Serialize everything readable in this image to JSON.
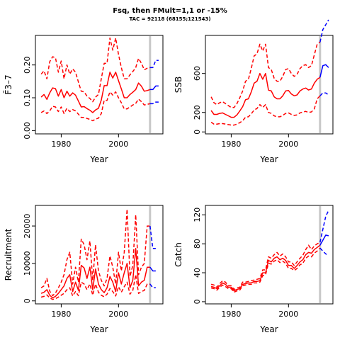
{
  "title": "Fsq, then FMult=1,1 or -15%",
  "subtitle": "TAC = 92118 (68155;121543)",
  "colors": {
    "history": "#ff0000",
    "projection": "#0000ff",
    "divider": "#c8c8c8",
    "axis": "#000000"
  },
  "chart_data": [
    {
      "type": "line",
      "id": "fbar",
      "xlabel": "Year",
      "ylabel": "F̄3–7",
      "xlim": [
        1971,
        2015.5
      ],
      "ylim": [
        -0.01,
        0.29
      ],
      "xticks": [
        1980,
        2000
      ],
      "yticks": [
        0.0,
        0.1,
        0.2
      ],
      "ytick_labels": [
        "0.00",
        "0.10",
        "0.20"
      ],
      "divider_x": 2011,
      "history_x": [
        1973,
        1974,
        1975,
        1976,
        1977,
        1978,
        1979,
        1980,
        1981,
        1982,
        1983,
        1984,
        1985,
        1986,
        1987,
        1988,
        1989,
        1990,
        1991,
        1992,
        1993,
        1994,
        1995,
        1996,
        1997,
        1998,
        1999,
        2000,
        2001,
        2002,
        2003,
        2004,
        2005,
        2006,
        2007,
        2008,
        2009,
        2010,
        2011
      ],
      "history_mid": [
        0.102,
        0.11,
        0.095,
        0.115,
        0.13,
        0.128,
        0.105,
        0.125,
        0.1,
        0.12,
        0.105,
        0.115,
        0.108,
        0.09,
        0.072,
        0.073,
        0.067,
        0.062,
        0.055,
        0.063,
        0.068,
        0.093,
        0.137,
        0.137,
        0.178,
        0.16,
        0.178,
        0.152,
        0.127,
        0.1,
        0.1,
        0.11,
        0.117,
        0.125,
        0.145,
        0.135,
        0.12,
        0.122,
        0.125
      ],
      "history_upper": [
        0.172,
        0.182,
        0.158,
        0.21,
        0.225,
        0.222,
        0.178,
        0.212,
        0.158,
        0.2,
        0.172,
        0.188,
        0.178,
        0.148,
        0.12,
        0.118,
        0.105,
        0.098,
        0.088,
        0.102,
        0.11,
        0.158,
        0.205,
        0.205,
        0.282,
        0.245,
        0.282,
        0.232,
        0.192,
        0.158,
        0.158,
        0.17,
        0.18,
        0.192,
        0.22,
        0.205,
        0.185,
        0.19,
        0.192
      ],
      "history_lower": [
        0.055,
        0.06,
        0.052,
        0.06,
        0.074,
        0.072,
        0.058,
        0.072,
        0.052,
        0.068,
        0.058,
        0.064,
        0.06,
        0.05,
        0.04,
        0.04,
        0.037,
        0.034,
        0.03,
        0.035,
        0.038,
        0.052,
        0.092,
        0.092,
        0.118,
        0.108,
        0.118,
        0.1,
        0.085,
        0.066,
        0.066,
        0.072,
        0.078,
        0.083,
        0.096,
        0.088,
        0.078,
        0.08,
        0.082
      ],
      "projection_x": [
        2011,
        2012,
        2013,
        2014
      ],
      "projection_mid": [
        0.125,
        0.125,
        0.136,
        0.136
      ],
      "projection_upper": [
        0.192,
        0.192,
        0.214,
        0.214
      ],
      "projection_lower": [
        0.082,
        0.082,
        0.087,
        0.087
      ]
    },
    {
      "type": "line",
      "id": "ssb",
      "xlabel": "Year",
      "ylabel": "SSB",
      "xlim": [
        1971,
        2015.5
      ],
      "ylim": [
        -20,
        990
      ],
      "xticks": [
        1980,
        2000
      ],
      "yticks": [
        0,
        200,
        600
      ],
      "ytick_labels": [
        "0",
        "200",
        "600"
      ],
      "divider_x": 2011,
      "history_x": [
        1973,
        1974,
        1975,
        1976,
        1977,
        1978,
        1979,
        1980,
        1981,
        1982,
        1983,
        1984,
        1985,
        1986,
        1987,
        1988,
        1989,
        1990,
        1991,
        1992,
        1993,
        1994,
        1995,
        1996,
        1997,
        1998,
        1999,
        2000,
        2001,
        2002,
        2003,
        2004,
        2005,
        2006,
        2007,
        2008,
        2009,
        2010,
        2011
      ],
      "history_mid": [
        220,
        180,
        180,
        190,
        195,
        180,
        165,
        150,
        150,
        175,
        215,
        260,
        330,
        340,
        410,
        500,
        520,
        600,
        540,
        600,
        430,
        420,
        360,
        340,
        340,
        370,
        420,
        425,
        390,
        370,
        380,
        420,
        440,
        450,
        430,
        440,
        500,
        540,
        560
      ],
      "history_upper": [
        360,
        300,
        280,
        300,
        310,
        290,
        270,
        250,
        250,
        290,
        350,
        420,
        520,
        540,
        650,
        780,
        800,
        900,
        830,
        900,
        660,
        640,
        550,
        520,
        520,
        570,
        640,
        650,
        600,
        570,
        590,
        650,
        680,
        690,
        660,
        680,
        790,
        900,
        920
      ],
      "history_lower": [
        100,
        80,
        80,
        85,
        85,
        80,
        75,
        70,
        70,
        80,
        95,
        115,
        150,
        155,
        185,
        225,
        240,
        280,
        250,
        280,
        200,
        190,
        165,
        155,
        155,
        170,
        190,
        195,
        180,
        170,
        175,
        195,
        205,
        210,
        200,
        205,
        235,
        340,
        370
      ],
      "projection_x": [
        2011,
        2012,
        2013,
        2014
      ],
      "projection_mid": [
        560,
        680,
        690,
        660
      ],
      "projection_upper": [
        920,
        1050,
        1100,
        1150
      ],
      "projection_lower": [
        370,
        400,
        400,
        380
      ]
    },
    {
      "type": "line",
      "id": "recruitment",
      "xlabel": "Year",
      "ylabel": "Recruitment",
      "xlim": [
        1971,
        2015.5
      ],
      "ylim": [
        -800,
        25500
      ],
      "xticks": [
        1980,
        2000
      ],
      "yticks": [
        0,
        10000,
        20000
      ],
      "ytick_labels": [
        "0",
        "10000",
        "20000"
      ],
      "divider_x": 2011,
      "history_x": [
        1973,
        1974,
        1975,
        1976,
        1977,
        1978,
        1979,
        1980,
        1981,
        1982,
        1983,
        1984,
        1985,
        1986,
        1987,
        1988,
        1989,
        1990,
        1991,
        1992,
        1993,
        1994,
        1995,
        1996,
        1997,
        1998,
        1999,
        2000,
        2001,
        2002,
        2003,
        2004,
        2005,
        2006,
        2007,
        2008,
        2009,
        2010,
        2011
      ],
      "history_mid": [
        2000,
        2300,
        3000,
        1500,
        800,
        1200,
        2000,
        3000,
        4000,
        6000,
        7000,
        2500,
        5000,
        2800,
        9500,
        8800,
        6000,
        9000,
        3000,
        8500,
        4500,
        3000,
        2200,
        3500,
        6500,
        5000,
        2500,
        7500,
        4500,
        7500,
        10000,
        3500,
        5500,
        14000,
        4000,
        5000,
        5500,
        9000,
        9000
      ],
      "history_upper": [
        3500,
        4000,
        6000,
        2600,
        1400,
        2100,
        3500,
        5000,
        7000,
        11000,
        13000,
        4500,
        9000,
        5000,
        16500,
        15000,
        11000,
        16000,
        5500,
        15000,
        8000,
        5500,
        4000,
        6000,
        12000,
        9000,
        4500,
        13000,
        8000,
        13000,
        24500,
        6500,
        9500,
        23000,
        7000,
        9000,
        10000,
        20000,
        20000
      ],
      "history_lower": [
        1000,
        1200,
        1600,
        800,
        400,
        600,
        1000,
        1500,
        2000,
        3000,
        3500,
        1300,
        2500,
        1400,
        5000,
        4500,
        3000,
        4500,
        1500,
        4500,
        2300,
        1500,
        1100,
        1800,
        3300,
        2500,
        1300,
        3800,
        2300,
        3800,
        5000,
        1800,
        2800,
        7000,
        2000,
        2500,
        2800,
        4500,
        4500
      ],
      "projection_x": [
        2011,
        2012,
        2013
      ],
      "projection_mid": [
        9000,
        8000,
        8000
      ],
      "projection_upper": [
        20000,
        14000,
        14000
      ],
      "projection_lower": [
        4500,
        3500,
        3500
      ]
    },
    {
      "type": "line",
      "id": "catch",
      "xlabel": "Year",
      "ylabel": "Catch",
      "xlim": [
        1971,
        2015.5
      ],
      "ylim": [
        -3,
        133
      ],
      "xticks": [
        1980,
        2000
      ],
      "yticks": [
        0,
        40,
        80,
        120
      ],
      "ytick_labels": [
        "0",
        "40",
        "80",
        "120"
      ],
      "divider_x": 2011,
      "history_x": [
        1973,
        1974,
        1975,
        1976,
        1977,
        1978,
        1979,
        1980,
        1981,
        1982,
        1983,
        1984,
        1985,
        1986,
        1987,
        1988,
        1989,
        1990,
        1991,
        1992,
        1993,
        1994,
        1995,
        1996,
        1997,
        1998,
        1999,
        2000,
        2001,
        2002,
        2003,
        2004,
        2005,
        2006,
        2007,
        2008,
        2009,
        2010,
        2011
      ],
      "history_mid": [
        21,
        20,
        18,
        22,
        26,
        24,
        20,
        20,
        15,
        17,
        18,
        24,
        25,
        26,
        26,
        28,
        28,
        29,
        40,
        40,
        57,
        55,
        60,
        62,
        58,
        60,
        57,
        50,
        50,
        46,
        50,
        55,
        58,
        65,
        68,
        67,
        72,
        75,
        78
      ],
      "history_upper": [
        24,
        23,
        20,
        25,
        29,
        27,
        22,
        22,
        17,
        19,
        20,
        27,
        27,
        28,
        29,
        30,
        31,
        32,
        44,
        44,
        62,
        60,
        65,
        68,
        63,
        66,
        62,
        55,
        55,
        50,
        55,
        60,
        64,
        72,
        78,
        72,
        77,
        80,
        82
      ],
      "history_lower": [
        19,
        18,
        16,
        20,
        23,
        21,
        18,
        18,
        13,
        15,
        16,
        22,
        23,
        24,
        24,
        26,
        26,
        27,
        36,
        37,
        53,
        52,
        56,
        58,
        54,
        56,
        53,
        46,
        46,
        43,
        46,
        51,
        53,
        60,
        63,
        62,
        67,
        70,
        74
      ],
      "projection_x": [
        2011,
        2012,
        2013,
        2014
      ],
      "projection_mid": [
        78,
        85,
        92,
        91
      ],
      "projection_upper": [
        82,
        100,
        118,
        126
      ],
      "projection_lower": [
        74,
        70,
        66,
        64
      ]
    }
  ]
}
